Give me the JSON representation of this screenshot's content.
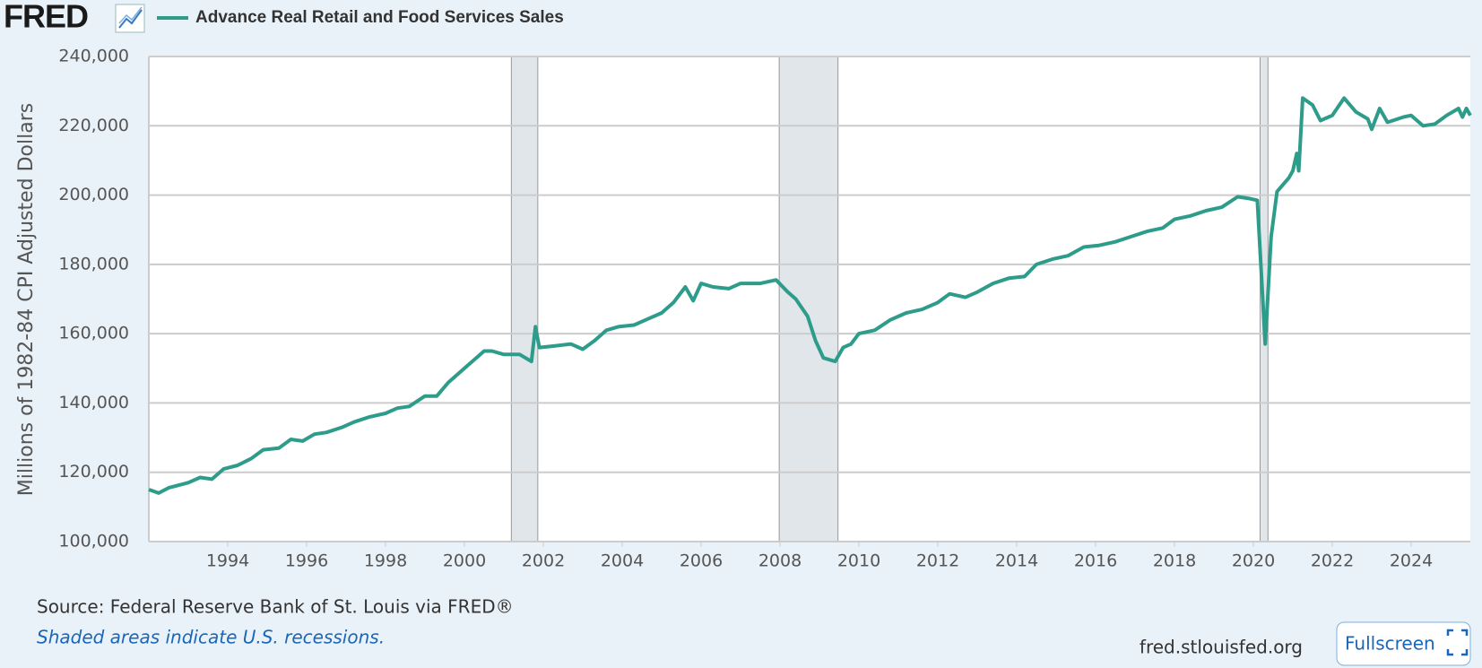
{
  "header": {
    "logo": "FRED"
  },
  "chart_data": {
    "type": "line",
    "y_label": "Millions of 1982-84 CPI Adjusted Dollars",
    "x": [
      1992.0,
      1992.25,
      1992.5,
      1993.0,
      1993.3,
      1993.6,
      1993.9,
      1994.25,
      1994.6,
      1994.9,
      1995.3,
      1995.6,
      1995.9,
      1996.2,
      1996.5,
      1996.9,
      1997.2,
      1997.6,
      1998.0,
      1998.3,
      1998.6,
      1999.0,
      1999.3,
      1999.6,
      2000.0,
      2000.3,
      2000.5,
      2000.7,
      2001.0,
      2001.4,
      2001.7,
      2001.8,
      2001.9,
      2002.3,
      2002.7,
      2003.0,
      2003.3,
      2003.6,
      2003.9,
      2004.3,
      2004.6,
      2005.0,
      2005.3,
      2005.6,
      2005.8,
      2006.0,
      2006.3,
      2006.7,
      2007.0,
      2007.5,
      2007.9,
      2008.2,
      2008.4,
      2008.7,
      2008.9,
      2009.1,
      2009.4,
      2009.6,
      2009.8,
      2010.0,
      2010.4,
      2010.8,
      2011.2,
      2011.6,
      2012.0,
      2012.3,
      2012.7,
      2013.0,
      2013.4,
      2013.8,
      2014.2,
      2014.5,
      2014.9,
      2015.3,
      2015.7,
      2016.1,
      2016.5,
      2016.9,
      2017.3,
      2017.7,
      2018.0,
      2018.4,
      2018.8,
      2019.2,
      2019.6,
      2019.9,
      2020.1,
      2020.3,
      2020.45,
      2020.6,
      2020.9,
      2021.0,
      2021.1,
      2021.15,
      2021.25,
      2021.5,
      2021.7,
      2022.0,
      2022.3,
      2022.6,
      2022.9,
      2023.0,
      2023.2,
      2023.4,
      2023.8,
      2024.0,
      2024.3,
      2024.6,
      2024.9,
      2025.2,
      2025.3,
      2025.4,
      2025.5
    ],
    "series": [
      {
        "name": "Advance Real Retail and Food Services Sales",
        "color": "#2e9c8a",
        "values": [
          115000,
          114000,
          115500,
          117000,
          118500,
          118000,
          121000,
          122000,
          124000,
          126500,
          127000,
          129500,
          129000,
          131000,
          131500,
          133000,
          134500,
          136000,
          137000,
          138500,
          139000,
          142000,
          142000,
          146000,
          150000,
          153000,
          155000,
          155000,
          154000,
          154000,
          152000,
          162000,
          156000,
          156500,
          157000,
          155500,
          158000,
          161000,
          162000,
          162500,
          164000,
          166000,
          169000,
          173500,
          169500,
          174500,
          173500,
          173000,
          174500,
          174500,
          175500,
          172000,
          170000,
          165000,
          158000,
          153000,
          152000,
          156000,
          157000,
          160000,
          161000,
          164000,
          166000,
          167000,
          169000,
          171500,
          170500,
          172000,
          174500,
          176000,
          176500,
          180000,
          181500,
          182500,
          185000,
          185500,
          186500,
          188000,
          189500,
          190500,
          193000,
          194000,
          195500,
          196500,
          199500,
          199000,
          198500,
          157000,
          188000,
          201000,
          205000,
          207000,
          212000,
          207000,
          228000,
          226000,
          221500,
          223000,
          228000,
          224000,
          222000,
          219000,
          225000,
          221000,
          222500,
          223000,
          220000,
          220500,
          223000,
          225000,
          222500,
          225000,
          223000
        ]
      }
    ],
    "recessions": [
      [
        2001.19,
        2001.86
      ],
      [
        2007.98,
        2009.47
      ],
      [
        2020.17,
        2020.37
      ]
    ],
    "xlim": [
      1992.0,
      2025.5
    ],
    "xticks": [
      1994,
      1996,
      1998,
      2000,
      2002,
      2004,
      2006,
      2008,
      2010,
      2012,
      2014,
      2016,
      2018,
      2020,
      2022,
      2024
    ],
    "ylim": [
      100000,
      240000
    ],
    "yticks": [
      {
        "value": 100000,
        "label": "100,000"
      },
      {
        "value": 120000,
        "label": "120,000"
      },
      {
        "value": 140000,
        "label": "140,000"
      },
      {
        "value": 160000,
        "label": "160,000"
      },
      {
        "value": 180000,
        "label": "180,000"
      },
      {
        "value": 200000,
        "label": "200,000"
      },
      {
        "value": 220000,
        "label": "220,000"
      },
      {
        "value": 240000,
        "label": "240,000"
      }
    ],
    "grid": true
  },
  "footer": {
    "source": "Source: Federal Reserve Bank of St. Louis via FRED®",
    "note": "Shaded areas indicate U.S. recessions.",
    "url": "fred.stlouisfed.org",
    "button": "Fullscreen"
  }
}
